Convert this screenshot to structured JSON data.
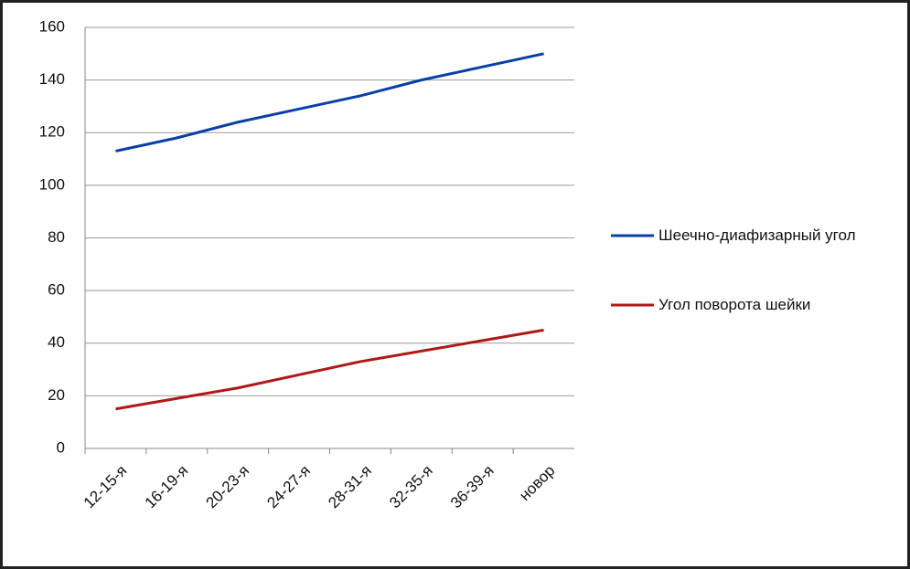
{
  "chart_data": {
    "type": "line",
    "categories": [
      "12-15-я",
      "16-19-я",
      "20-23-я",
      "24-27-я",
      "28-31-я",
      "32-35-я",
      "36-39-я",
      "новор"
    ],
    "series": [
      {
        "name": "Шеечно-диафизарный угол",
        "color": "#0a3fa8",
        "values": [
          113,
          118,
          124,
          129,
          134,
          140,
          145,
          150
        ]
      },
      {
        "name": "Угол поворота шейки",
        "color": "#b01818",
        "values": [
          15,
          19,
          23,
          28,
          33,
          37,
          41,
          45
        ]
      }
    ],
    "ylim": [
      0,
      160
    ],
    "yticks": [
      0,
      20,
      40,
      60,
      80,
      100,
      120,
      140,
      160
    ],
    "grid": true,
    "legend": "right"
  }
}
